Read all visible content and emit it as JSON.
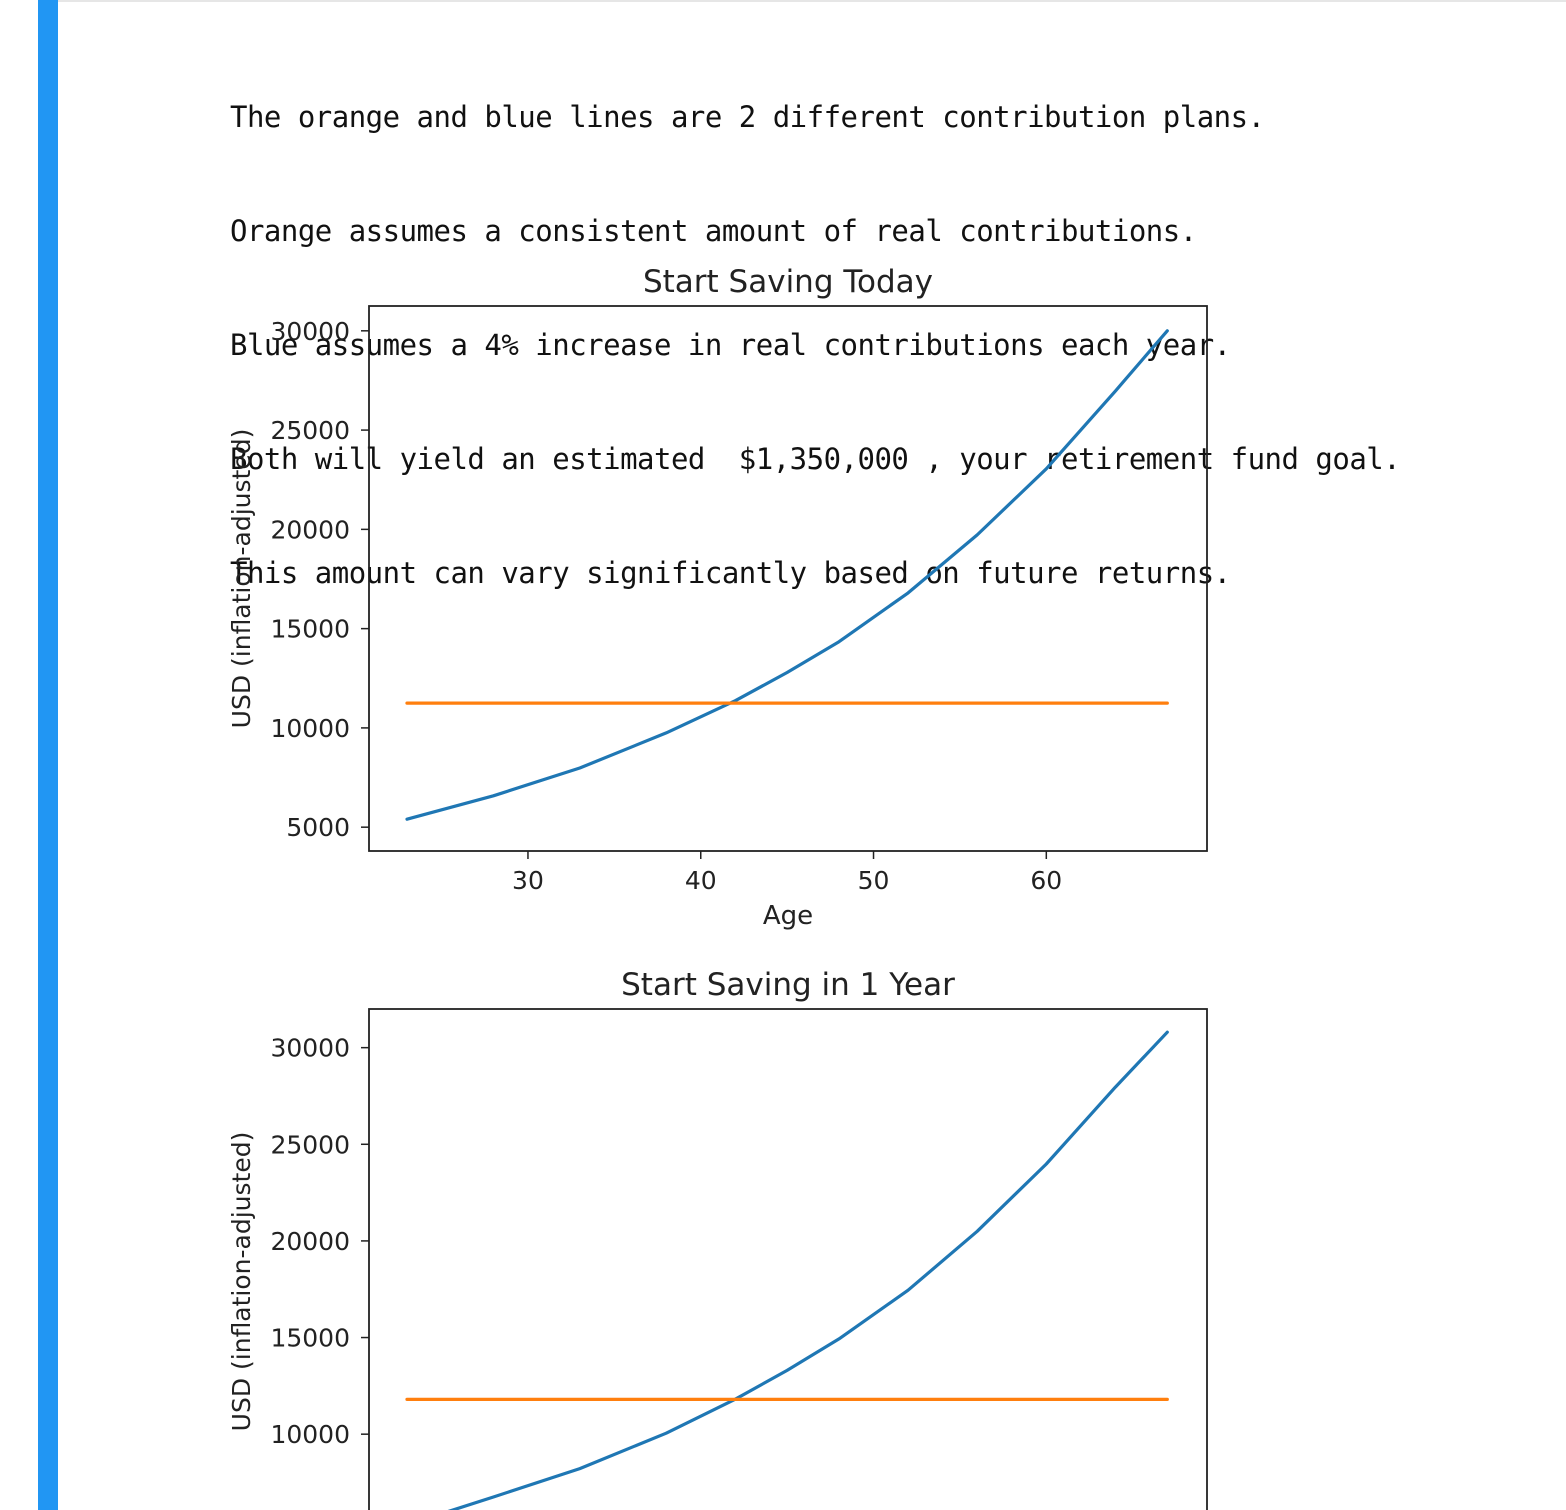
{
  "notebook": {
    "cell_bar_color": "#2196F3",
    "output_lines": [
      "The orange and blue lines are 2 different contribution plans.",
      "Orange assumes a consistent amount of real contributions.",
      "Blue assumes a 4% increase in real contributions each year.",
      "Both will yield an estimated  $1,350,000 , your retirement fund goal.",
      "This amount can vary significantly based on future returns."
    ]
  },
  "chart_data": [
    {
      "type": "line",
      "title": "Start Saving Today",
      "xlabel": "Age",
      "ylabel": "USD (inflation-adjusted)",
      "xlim": [
        20.8,
        69.3
      ],
      "ylim": [
        3800,
        31250
      ],
      "xticks": [
        30,
        40,
        50,
        60
      ],
      "yticks": [
        5000,
        10000,
        15000,
        20000,
        25000,
        30000
      ],
      "series": [
        {
          "color": "#1f77b4",
          "x": [
            23,
            28,
            33,
            38,
            42,
            45,
            48,
            52,
            56,
            60,
            64,
            67
          ],
          "y": [
            5400,
            6580,
            7980,
            9750,
            11370,
            12790,
            14340,
            16800,
            19720,
            23050,
            26970,
            30000
          ]
        },
        {
          "color": "#ff7f0e",
          "x": [
            23,
            67
          ],
          "y": [
            11250,
            11250
          ]
        }
      ]
    },
    {
      "type": "line",
      "title": "Start Saving in 1 Year",
      "xlabel": "",
      "ylabel": "USD (inflation-adjusted)",
      "xlim": [
        20.8,
        69.3
      ],
      "ylim": [
        3800,
        32000
      ],
      "xticks": [],
      "yticks": [
        10000,
        15000,
        20000,
        25000,
        30000
      ],
      "series": [
        {
          "color": "#1f77b4",
          "x": [
            24,
            28,
            33,
            38,
            42,
            45,
            48,
            52,
            56,
            60,
            64,
            67
          ],
          "y": [
            5600,
            6750,
            8220,
            10050,
            11810,
            13300,
            14930,
            17450,
            20500,
            23980,
            27960,
            30800
          ]
        },
        {
          "color": "#ff7f0e",
          "x": [
            23,
            67
          ],
          "y": [
            11800,
            11800
          ]
        }
      ]
    }
  ]
}
